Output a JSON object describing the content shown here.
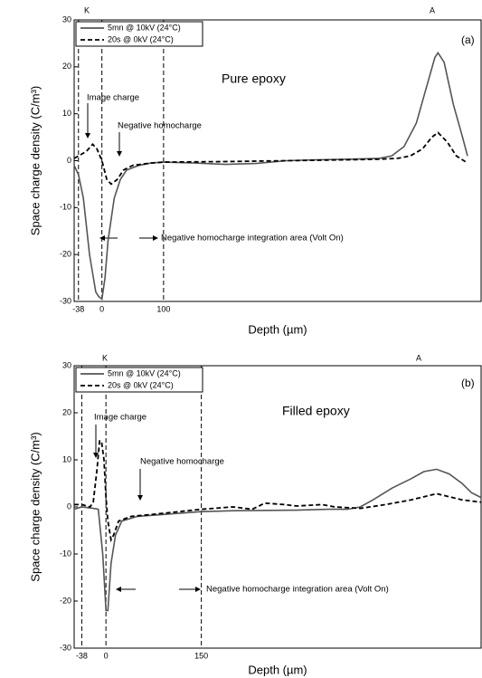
{
  "chart_data": [
    {
      "type": "line",
      "title": "Pure epoxy",
      "panel_label": "(a)",
      "top_labels": [
        "K",
        "A"
      ],
      "xlabel": "Depth (µm)",
      "ylabel": "Space charge density (C/m³)",
      "annotations": [
        "Image charge",
        "Negative homocharge",
        "Negative homocharge integration area (Volt On)"
      ],
      "xlim": [
        -45,
        615
      ],
      "ylim": [
        -30,
        30
      ],
      "xticks": [
        -38,
        0,
        100
      ],
      "yticks": [
        -30,
        -20,
        -10,
        0,
        10,
        20,
        30
      ],
      "series": [
        {
          "name": "5mn @ 10kV (24°C)",
          "color": "#555555",
          "linestyle": "solid",
          "x": [
            -45,
            -38,
            -30,
            -20,
            -10,
            -5,
            0,
            5,
            10,
            20,
            30,
            40,
            60,
            80,
            100,
            150,
            200,
            250,
            300,
            350,
            400,
            450,
            470,
            490,
            510,
            525,
            540,
            545,
            555,
            570,
            585,
            593
          ],
          "values": [
            -1,
            -3,
            -8,
            -20,
            -28,
            -29,
            -29.5,
            -25,
            -17,
            -8,
            -4,
            -2,
            -1,
            -0.5,
            -0.3,
            -0.5,
            -0.8,
            -0.6,
            0,
            0.2,
            0.3,
            0.5,
            1,
            3,
            8,
            15,
            22,
            23,
            21,
            12,
            5,
            1
          ]
        },
        {
          "name": "20s @ 0kV (24°C)",
          "color": "#000000",
          "linestyle": "dashed",
          "x": [
            -45,
            -38,
            -25,
            -15,
            -8,
            0,
            8,
            15,
            25,
            35,
            50,
            80,
            100,
            200,
            300,
            400,
            450,
            480,
            500,
            520,
            535,
            545,
            560,
            575,
            593
          ],
          "values": [
            0.5,
            1,
            2,
            3.5,
            2.5,
            0,
            -4,
            -5,
            -4,
            -2,
            -1,
            -0.5,
            -0.3,
            -0.2,
            0,
            0.2,
            0.3,
            0.5,
            1,
            2.5,
            5,
            6,
            4,
            1,
            -0.5
          ]
        }
      ]
    },
    {
      "type": "line",
      "title": "Filled epoxy",
      "panel_label": "(b)",
      "top_labels": [
        "K",
        "A"
      ],
      "xlabel": "Depth (µm)",
      "ylabel": "Space charge density (C/m³)",
      "annotations": [
        "Image charge",
        "Negative homocharge",
        "Negative homocharge integration area (Volt On)"
      ],
      "xlim": [
        -50,
        590
      ],
      "ylim": [
        -30,
        30
      ],
      "xticks": [
        -38,
        0,
        150
      ],
      "yticks": [
        -30,
        -20,
        -10,
        0,
        10,
        20,
        30
      ],
      "series": [
        {
          "name": "5mn @ 10kV (24°C)",
          "color": "#555555",
          "linestyle": "solid",
          "x": [
            -50,
            -38,
            -20,
            -12,
            -5,
            0,
            3,
            8,
            15,
            25,
            50,
            100,
            150,
            200,
            300,
            350,
            380,
            400,
            420,
            450,
            480,
            500,
            520,
            540,
            560,
            575,
            590
          ],
          "values": [
            -0.5,
            0,
            -0.3,
            -0.5,
            -10,
            -22,
            -22,
            -12,
            -6,
            -3,
            -2,
            -1.5,
            -1,
            -0.8,
            -0.7,
            -0.5,
            -0.5,
            0,
            1.5,
            4,
            6,
            7.5,
            8,
            7,
            5,
            3,
            2
          ]
        },
        {
          "name": "20s @ 0kV (24°C)",
          "color": "#000000",
          "linestyle": "dashed",
          "x": [
            -50,
            -38,
            -25,
            -20,
            -14,
            -10,
            -7,
            -3,
            0,
            3,
            8,
            12,
            20,
            40,
            80,
            150,
            200,
            230,
            250,
            280,
            300,
            340,
            360,
            400,
            440,
            480,
            520,
            560,
            590
          ],
          "values": [
            0.5,
            0.5,
            0,
            1,
            8,
            14,
            14,
            10,
            2,
            -3,
            -7,
            -6,
            -3,
            -2,
            -1.5,
            -0.5,
            0,
            -0.5,
            0.8,
            0.5,
            0.2,
            0.5,
            0,
            -0.3,
            0.5,
            1.5,
            2.8,
            1.5,
            1
          ]
        }
      ]
    }
  ]
}
